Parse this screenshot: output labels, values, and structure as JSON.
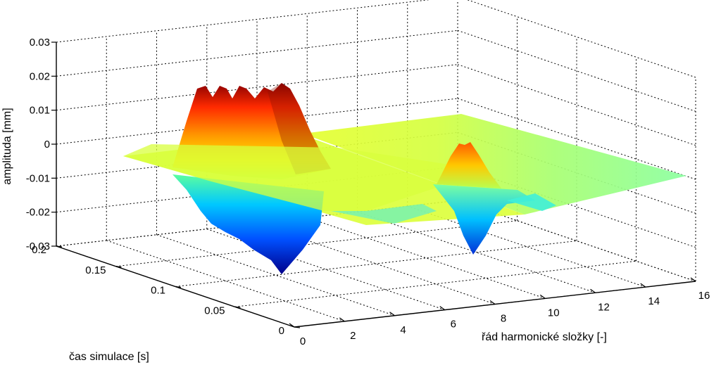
{
  "chart_data": {
    "type": "surface",
    "zlabel": "amplituda [mm]",
    "ylabel": "čas simulace [s]",
    "xlabel": "řád harmonické složky [-]",
    "x_ticks": [
      "0",
      "2",
      "4",
      "6",
      "8",
      "10",
      "12",
      "14",
      "16"
    ],
    "y_ticks": [
      "0",
      "0.05",
      "0.1",
      "0.15",
      "0.2"
    ],
    "z_ticks": [
      "-0.03",
      "-0.02",
      "-0.01",
      "0",
      "0.01",
      "0.02",
      "0.03"
    ],
    "xlim": [
      0,
      16
    ],
    "ylim": [
      0,
      0.2
    ],
    "zlim": [
      -0.03,
      0.03
    ],
    "grid": true,
    "colormap": "jet",
    "peaks": [
      {
        "harmonic": 4,
        "time_from": 0.1,
        "time_to": 0.2,
        "max_amplitude": 0.02,
        "min_amplitude": -0.03
      },
      {
        "harmonic": 8,
        "time_from": 0.0,
        "time_to": 0.06,
        "max_amplitude": 0.01,
        "min_amplitude": -0.02
      }
    ],
    "baseline_amplitude": 0
  }
}
